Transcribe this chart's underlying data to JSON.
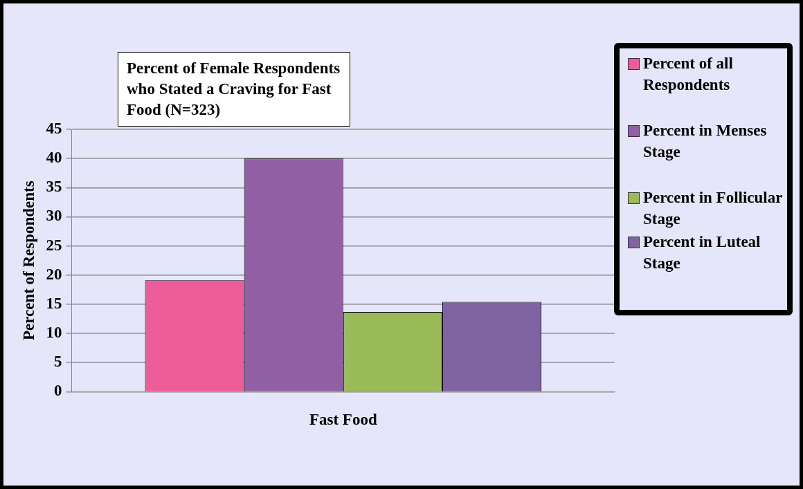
{
  "chart_data": {
    "type": "bar",
    "title": "Percent of Female Respondents who Stated a Craving for Fast Food (N=323)",
    "ylabel": "Percent of Respondents",
    "categories": [
      "Fast Food"
    ],
    "series": [
      {
        "name": "Percent of all Respondents",
        "color": "#ee5c9a",
        "values": [
          19.1
        ]
      },
      {
        "name": "Percent in Menses Stage",
        "color": "#925fa4",
        "values": [
          40
        ]
      },
      {
        "name": "Percent in Follicular Stage",
        "color": "#9bbb59",
        "values": [
          13.7
        ]
      },
      {
        "name": "Percent in Luteal Stage",
        "color": "#8064a2",
        "values": [
          15.4
        ]
      }
    ],
    "ylim": [
      0,
      45
    ],
    "yticks": [
      0,
      5,
      10,
      15,
      20,
      25,
      30,
      35,
      40,
      45
    ],
    "grid": "y",
    "legend": "right"
  }
}
